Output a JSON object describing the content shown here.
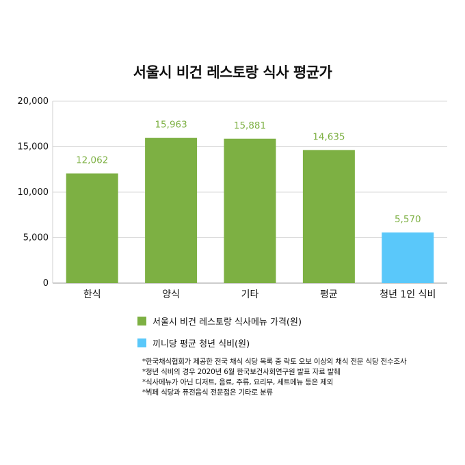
{
  "chart_data": {
    "type": "bar",
    "title": "서울시 비건 레스토랑 식사 평균가",
    "categories": [
      "한식",
      "양식",
      "기타",
      "평균",
      "청년 1인 식비"
    ],
    "values": [
      12062,
      15963,
      15881,
      14635,
      5570
    ],
    "value_labels": [
      "12,062",
      "15,963",
      "15,881",
      "14,635",
      "5,570"
    ],
    "bar_colors": [
      "#7db043",
      "#7db043",
      "#7db043",
      "#7db043",
      "#5ac8fa"
    ],
    "value_label_color": "#7db043",
    "ylim": [
      0,
      20000
    ],
    "yticks": [
      0,
      5000,
      10000,
      15000,
      20000
    ],
    "ytick_labels": [
      "0",
      "5,000",
      "10,000",
      "15,000",
      "20,000"
    ],
    "grid": true,
    "legend_position": "bottom",
    "series": [
      {
        "name": "서울시 비건 레스토랑 식사메뉴 가격(원)",
        "color": "#7db043"
      },
      {
        "name": "끼니당 평균 청년 식비(원)",
        "color": "#5ac8fa"
      }
    ]
  },
  "notes": [
    "*한국채식협회가 제공한 전국 채식 식당 목록 중 락토 오보 이상의 채식 전문 식당 전수조사",
    "*청년 식비의 경우 2020년 6월 한국보건사회연구원 발표 자료 발췌",
    "*식사메뉴가 아닌 디저트, 음료, 주류, 요리부, 세트메뉴 등은 제외",
    "*뷔페 식당과 퓨전음식 전문점은 기타로 분류"
  ]
}
